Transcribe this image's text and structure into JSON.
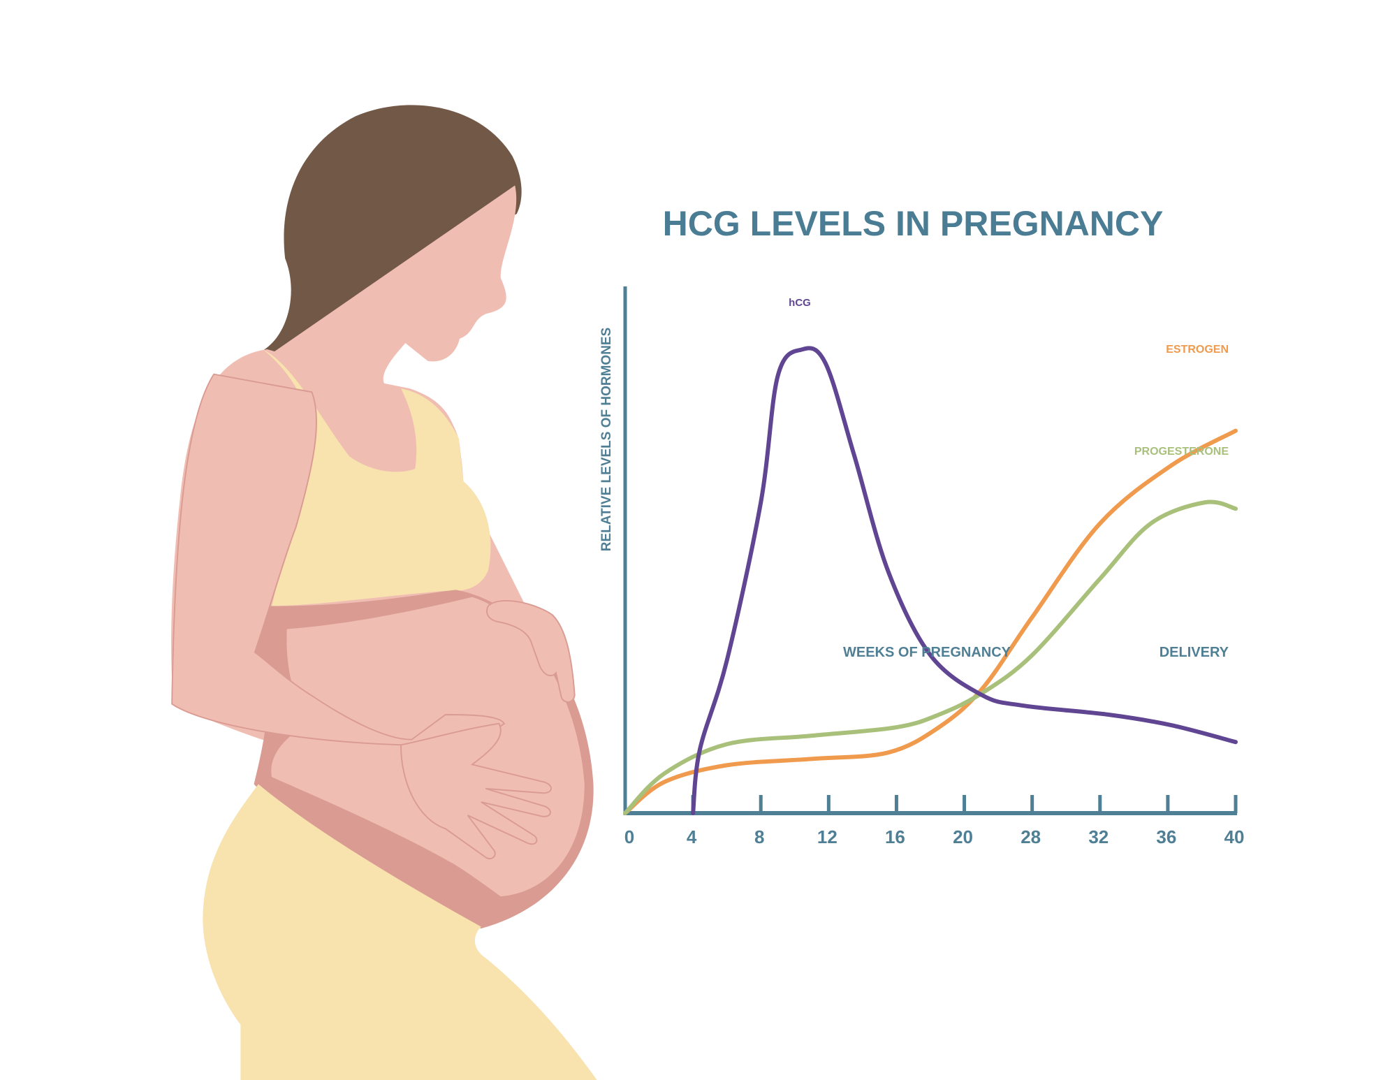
{
  "colors": {
    "axis": "#4F7F95",
    "title": "#4A7C93",
    "hair": "#725847",
    "skin": "#F0BDB3",
    "skin_shadow": "#D99B92",
    "clothing": "#F8E2AE"
  },
  "illustration": {
    "subject": "pregnant-woman"
  },
  "chart_data": {
    "type": "line",
    "title": "HCG LEVELS IN PREGNANCY",
    "xlabel": "WEEKS OF PREGNANCY",
    "xlabel_end": "DELIVERY",
    "ylabel": "RELATIVE LEVELS OF HORMONES",
    "x_ticks": [
      0,
      4,
      8,
      12,
      16,
      20,
      28,
      32,
      36,
      40
    ],
    "x_ticks_evenly_spaced": true,
    "xlim": [
      0,
      40
    ],
    "ylim": [
      0,
      100
    ],
    "y_ticks": [],
    "grid": false,
    "legend": "inline-labels",
    "series": [
      {
        "name": "hCG",
        "color": "#5F4592",
        "x": [
          4,
          4.4,
          6.0,
          8.0,
          9.0,
          10.4,
          11.8,
          13.5,
          15.5,
          18.0,
          22.1,
          27.0,
          32.5,
          36.2,
          40
        ],
        "y": [
          0,
          12,
          29,
          59,
          83,
          88,
          85.5,
          68,
          46,
          30,
          22.4,
          20.4,
          18.7,
          16.7,
          13.5
        ]
      },
      {
        "name": "ESTROGEN",
        "color": "#F09A4E",
        "x": [
          0,
          2.3,
          6.0,
          11.0,
          15.5,
          18.5,
          22.1,
          28,
          32,
          36.2,
          40
        ],
        "y": [
          0,
          5.9,
          9.1,
          10.3,
          11.5,
          16.3,
          23.6,
          37.2,
          55,
          66,
          72.6
        ]
      },
      {
        "name": "PROGESTERONE",
        "color": "#A8C07A",
        "x": [
          0,
          2.3,
          6.0,
          11.0,
          16.0,
          18.5,
          22.1,
          28,
          32,
          35,
          38.2,
          40
        ],
        "y": [
          0,
          7.5,
          13.1,
          14.7,
          16.3,
          18.7,
          22.8,
          30,
          44.5,
          55,
          59,
          57.8
        ]
      }
    ]
  }
}
